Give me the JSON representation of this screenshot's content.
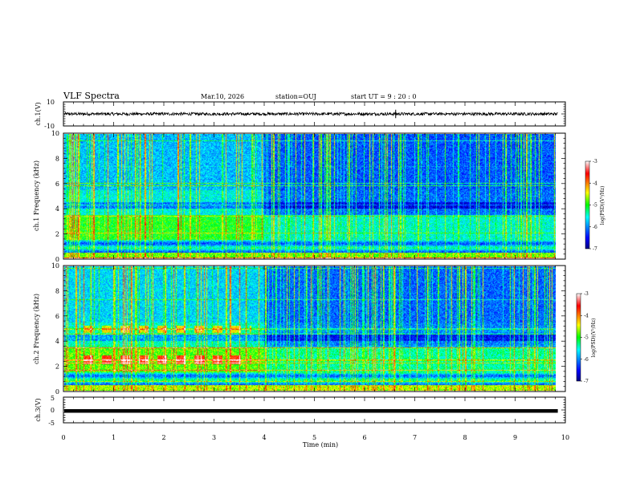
{
  "header": {
    "title": "VLF Spectra",
    "date": "Mar.10, 2026",
    "station": "station=OUJ",
    "start": "start  UT =   9 : 20 : 0"
  },
  "chart_data": [
    {
      "type": "line",
      "panel": "ch1-waveform",
      "ylabel": "ch.1(V)",
      "ylim": [
        -10,
        10
      ],
      "yticks": [
        10,
        -10
      ],
      "xlim": [
        0,
        10
      ],
      "series_level": 0.0,
      "series_noise_amplitude": 1.2,
      "x_end_min": 9.85
    },
    {
      "type": "heatmap",
      "panel": "ch1-spectrogram",
      "ylabel": "ch.1  Frequency (kHz)",
      "ylim": [
        0,
        10
      ],
      "yticks": [
        0,
        2,
        4,
        6,
        8,
        10
      ],
      "xlim": [
        0,
        10
      ],
      "x_end_min": 9.85,
      "colorbar": {
        "label": "log(PSD)(V²/Hz)",
        "range": [
          -7,
          -3
        ],
        "ticks": [
          -3,
          -4,
          -5,
          -6,
          -7
        ]
      }
    },
    {
      "type": "heatmap",
      "panel": "ch2-spectrogram",
      "ylabel": "ch.2  Frequency (kHz)",
      "ylim": [
        0,
        10
      ],
      "yticks": [
        0,
        2,
        4,
        6,
        8,
        10
      ],
      "xlim": [
        0,
        10
      ],
      "x_end_min": 9.85,
      "colorbar": {
        "label": "log(PSD)(V²/Hz)",
        "range": [
          -7,
          -3
        ],
        "ticks": [
          -3,
          -4,
          -5,
          -6,
          -7
        ]
      }
    },
    {
      "type": "line",
      "panel": "ch3-waveform",
      "ylabel": "ch.3(V)",
      "ylim": [
        -5,
        5
      ],
      "yticks": [
        5,
        0,
        -5
      ],
      "xlim": [
        0,
        10
      ],
      "series_level": -0.3,
      "series_noise_amplitude": 0.15,
      "x_end_min": 9.85
    }
  ],
  "xaxis": {
    "label": "Time (min)",
    "ticks": [
      0,
      1,
      2,
      3,
      4,
      5,
      6,
      7,
      8,
      9,
      10
    ]
  }
}
